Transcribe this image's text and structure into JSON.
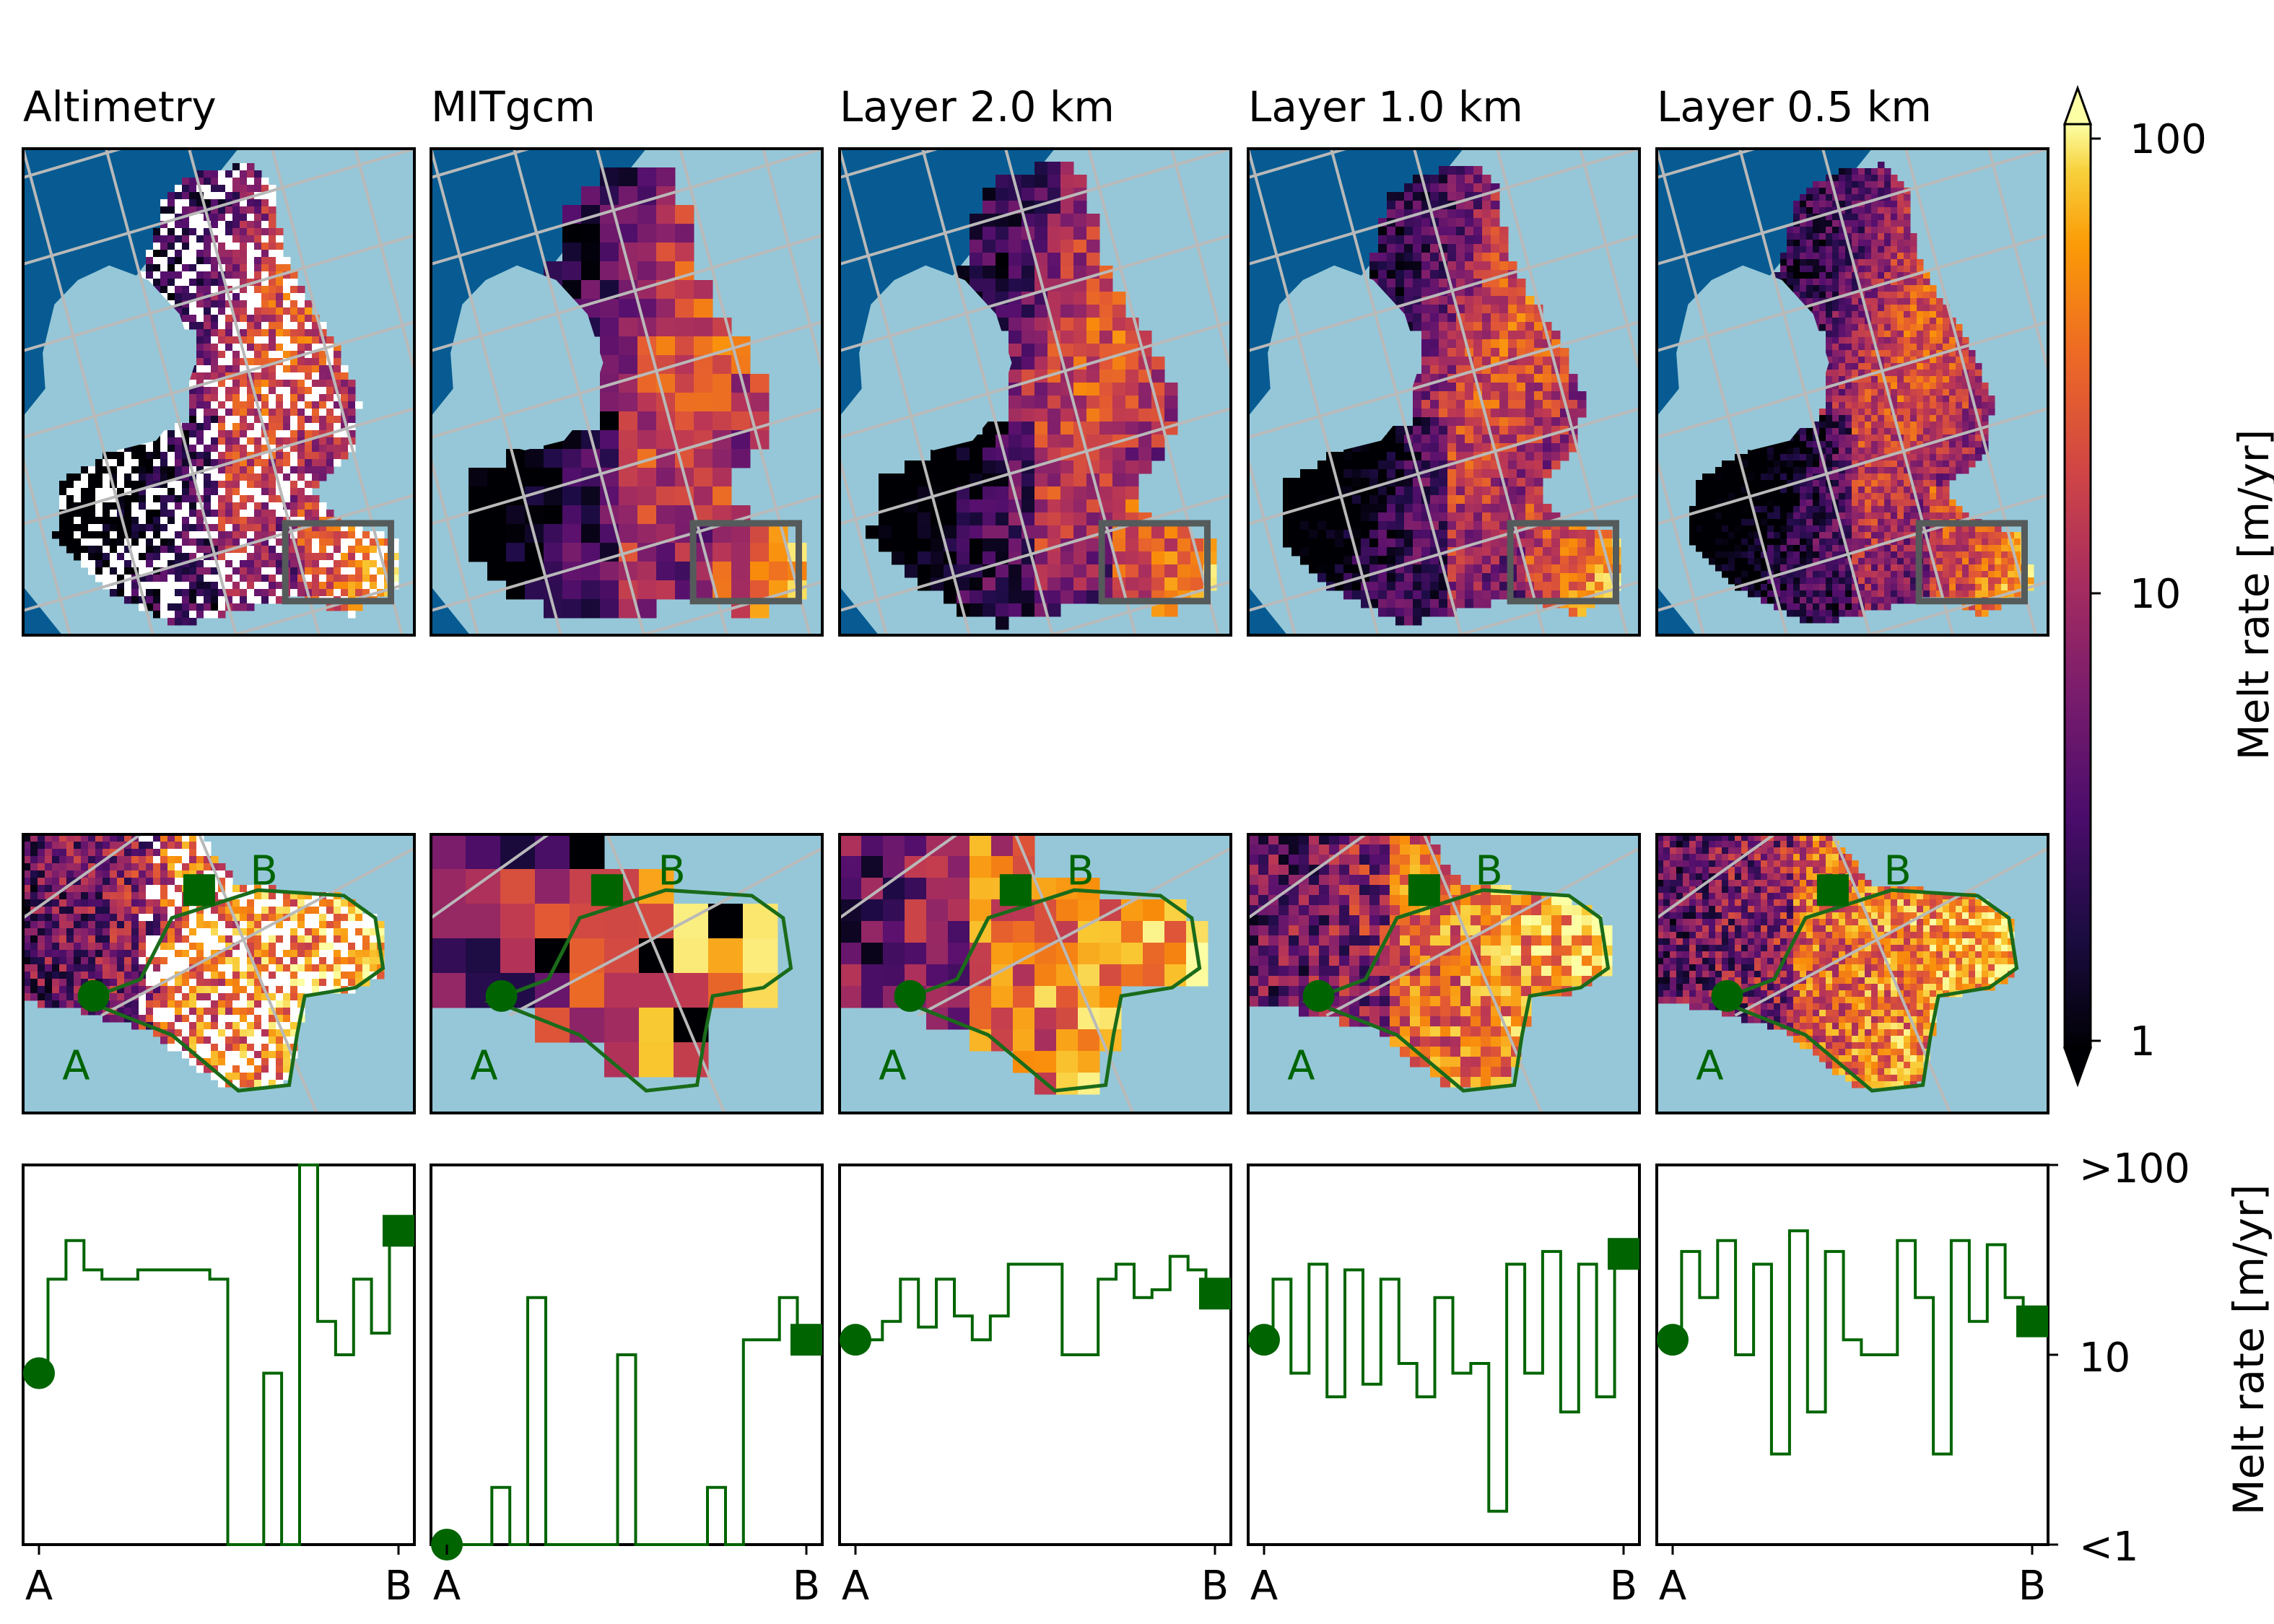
{
  "chart_data": {
    "type": "heatmap",
    "panels": [
      {
        "title": "Altimetry"
      },
      {
        "title": "MITgcm"
      },
      {
        "title": "Layer 2.0 km"
      },
      {
        "title": "Layer 1.0 km"
      },
      {
        "title": "Layer 0.5 km"
      }
    ],
    "colorbar": {
      "label": "Melt rate [m/yr]",
      "scale": "log",
      "colormap": "inferno",
      "range": [
        1,
        100
      ],
      "ticks": [
        "1",
        "10",
        "100"
      ],
      "extend": "both"
    },
    "transect": {
      "start_label": "A",
      "end_label": "B",
      "line_color": "#006400",
      "outline_color": "#1a6b1a"
    },
    "colors": {
      "ocean": "#95c7d8",
      "deep_ocean": "#075b92",
      "grid": "#b9b9b9",
      "zoom_box": "#555a5a"
    },
    "profile_axis": {
      "label": "Melt rate [m/yr]",
      "scale": "log",
      "ticks": [
        ">100",
        "10",
        "<1"
      ],
      "range": [
        1,
        100
      ]
    },
    "profiles": [
      {
        "panel": "Altimetry",
        "x": [
          0,
          0.05,
          0.1,
          0.15,
          0.2,
          0.25,
          0.3,
          0.35,
          0.4,
          0.45,
          0.5,
          0.55,
          0.6,
          0.65,
          0.7,
          0.75,
          0.8,
          0.85,
          0.9,
          0.95,
          1
        ],
        "y": [
          8,
          25,
          40,
          28,
          25,
          25,
          28,
          28,
          28,
          28,
          25,
          1,
          1,
          8,
          1,
          100,
          15,
          10,
          25,
          13,
          45
        ]
      },
      {
        "panel": "MITgcm",
        "x": [
          0,
          0.05,
          0.1,
          0.15,
          0.2,
          0.25,
          0.3,
          0.35,
          0.4,
          0.45,
          0.5,
          0.55,
          0.6,
          0.65,
          0.7,
          0.75,
          0.8,
          0.85,
          0.9,
          0.95,
          1
        ],
        "y": [
          1,
          1,
          1,
          2,
          1,
          20,
          1,
          1,
          1,
          1,
          10,
          1,
          1,
          1,
          1,
          2,
          1,
          12,
          12,
          20,
          12
        ]
      },
      {
        "panel": "Layer 2.0 km",
        "x": [
          0,
          0.05,
          0.1,
          0.15,
          0.2,
          0.25,
          0.3,
          0.35,
          0.4,
          0.45,
          0.5,
          0.55,
          0.6,
          0.65,
          0.7,
          0.75,
          0.8,
          0.85,
          0.9,
          0.95,
          1
        ],
        "y": [
          12,
          12,
          15,
          25,
          14,
          25,
          16,
          12,
          16,
          30,
          30,
          30,
          10,
          10,
          25,
          30,
          20,
          22,
          33,
          28,
          21
        ]
      },
      {
        "panel": "Layer 1.0 km",
        "x": [
          0,
          0.05,
          0.1,
          0.15,
          0.2,
          0.25,
          0.3,
          0.35,
          0.4,
          0.45,
          0.5,
          0.55,
          0.6,
          0.65,
          0.7,
          0.75,
          0.8,
          0.85,
          0.9,
          0.95,
          1
        ],
        "y": [
          12,
          25,
          8,
          30,
          6,
          28,
          7,
          25,
          9,
          6,
          20,
          8,
          9,
          1.5,
          30,
          8,
          35,
          5,
          30,
          6,
          34
        ]
      },
      {
        "panel": "Layer 0.5 km",
        "x": [
          0,
          0.05,
          0.1,
          0.15,
          0.2,
          0.25,
          0.3,
          0.35,
          0.4,
          0.45,
          0.5,
          0.55,
          0.6,
          0.65,
          0.7,
          0.75,
          0.8,
          0.85,
          0.9,
          0.95,
          1
        ],
        "y": [
          12,
          35,
          20,
          40,
          10,
          30,
          3,
          45,
          5,
          35,
          12,
          10,
          10,
          40,
          20,
          3,
          40,
          15,
          38,
          20,
          15
        ]
      }
    ]
  }
}
